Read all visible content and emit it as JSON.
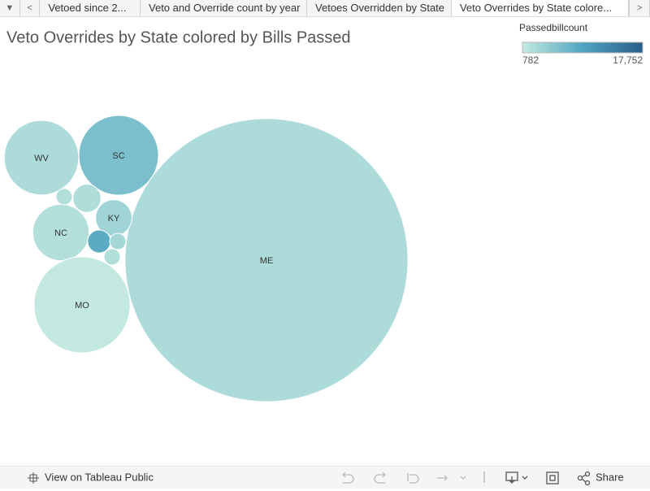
{
  "tabs": [
    "Vetoed since 2...",
    "Veto and Override count by year",
    "Vetoes Overridden by State",
    "Veto Overrides by State colore..."
  ],
  "chart_data": {
    "type": "bubble",
    "title": "Veto Overrides by State colored by Bills Passed",
    "categories": [
      "WV",
      "SC",
      "ME",
      "NC",
      "MO",
      "KY",
      null,
      null,
      null,
      null,
      null
    ],
    "values": [
      21,
      24,
      303,
      12,
      35,
      5,
      1,
      3,
      2,
      1,
      1
    ],
    "color_values": [
      2500,
      6000,
      2500,
      2000,
      900,
      3500,
      2000,
      2300,
      8500,
      3000,
      2000
    ],
    "color_legend": {
      "title": "Passedbillcount",
      "colorlim": [
        782,
        17752
      ],
      "ticks": [
        782,
        {
          "value": 17752,
          "label": "17,752"
        }
      ],
      "colors": [
        "#c4e9df",
        "#4fa5c0",
        "#2a5d8a"
      ]
    }
  },
  "toolbar": {
    "view": "View on Tableau Public",
    "share": "Share"
  }
}
